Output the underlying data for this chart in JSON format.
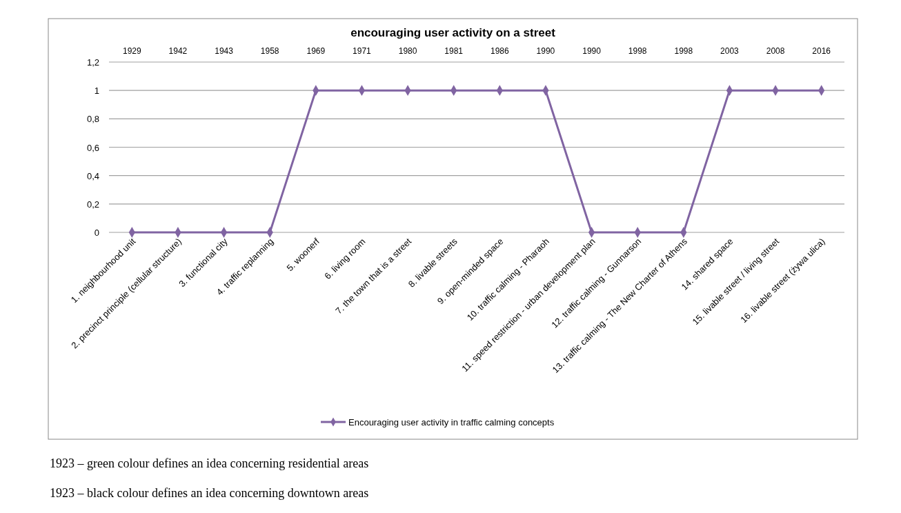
{
  "chart_data": {
    "type": "line",
    "title": "encouraging user activity on a street",
    "categories": [
      "1. neighbourhood unit",
      "2. precinct principle (cellular structure)",
      "3. functional city",
      "4. traffic replanning",
      "5. woonerf",
      "6. living room",
      "7. the town that is a street",
      "8. livable streets",
      "9. open-minded space",
      "10. traffic calming - Pharaoh",
      "11. speed restriction - urban development plan",
      "12. traffic calming - Gunnarson",
      "13. traffic calming - The New Charter of Athens",
      "14. shared space",
      "15. livable street / living street",
      "16. livable street (żywa ulica)"
    ],
    "series": [
      {
        "name": "Encouraging user activity in traffic calming concepts",
        "color": "#8064a2",
        "values": [
          0,
          0,
          0,
          0,
          1,
          1,
          1,
          1,
          1,
          1,
          0,
          0,
          0,
          1,
          1,
          1
        ]
      }
    ],
    "ylim": [
      0,
      1.2
    ],
    "yticks": [
      {
        "value": 0,
        "label": "0"
      },
      {
        "value": 0.2,
        "label": "0,2"
      },
      {
        "value": 0.4,
        "label": "0,4"
      },
      {
        "value": 0.6,
        "label": "0,6"
      },
      {
        "value": 0.8,
        "label": "0,8"
      },
      {
        "value": 1,
        "label": "1"
      },
      {
        "value": 1.2,
        "label": "1,2"
      }
    ],
    "grid": "y",
    "legend": "bottom",
    "marker": "diamond",
    "line_style": "solid",
    "annotations": [
      "1929",
      "1942",
      "1943",
      "1958",
      "1969",
      "1971",
      "1980",
      "1981",
      "1986",
      "1990",
      "1990",
      "1998",
      "1998",
      "2003",
      "2008",
      "2016",
      "1923 – green colour defines an idea concerning residential areas",
      "1923 – black colour defines an idea concerning downtown areas"
    ]
  }
}
